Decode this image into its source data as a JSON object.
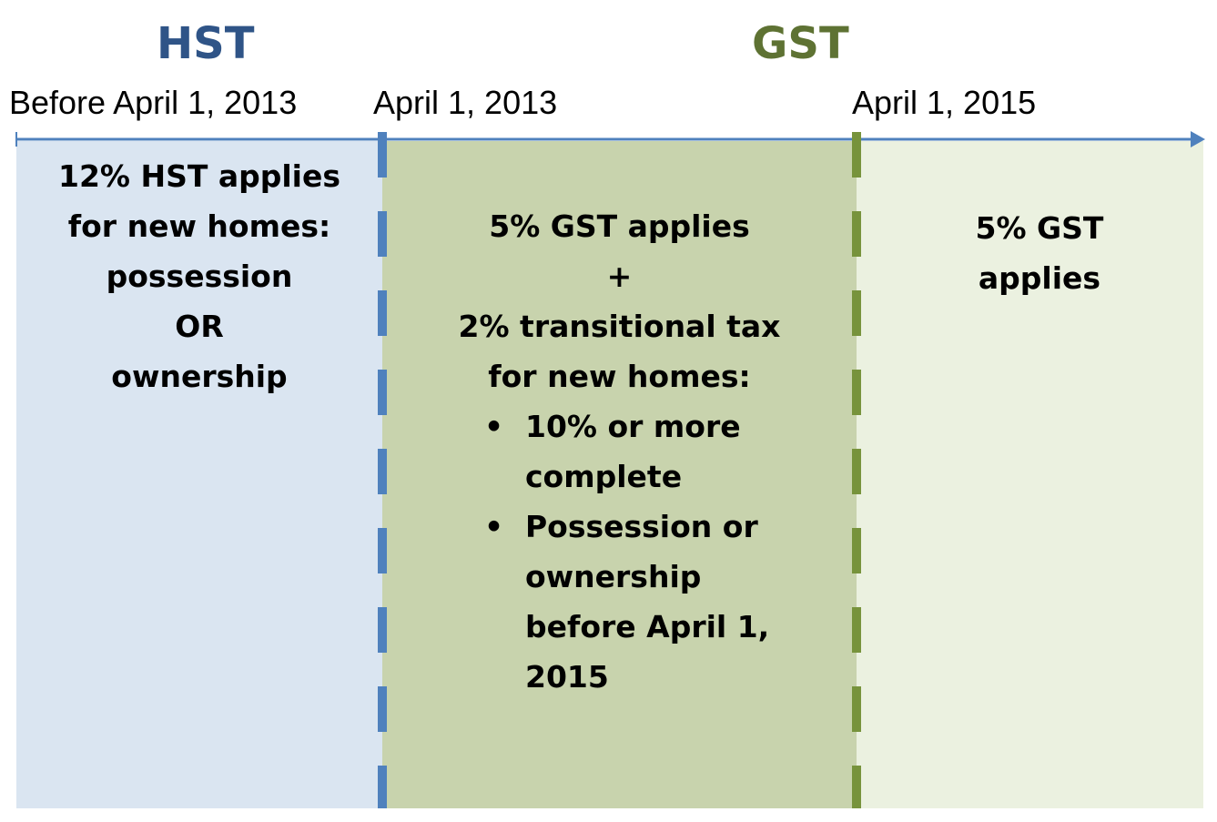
{
  "headings": {
    "hst": "HST",
    "gst": "GST"
  },
  "dates": {
    "before": "Before April 1, 2013",
    "start_transition": "April 1, 2013",
    "end_transition": "April 1, 2015"
  },
  "panels": {
    "hst": {
      "lines": [
        "12% HST applies",
        "for new homes:",
        "possession",
        "OR",
        "ownership"
      ]
    },
    "transition": {
      "lines": [
        "5% GST applies",
        "+",
        "2% transitional tax",
        "for new homes:"
      ],
      "bullets": [
        [
          "10% or more",
          "complete"
        ],
        [
          "Possession or",
          "ownership",
          "before April 1,",
          "2015"
        ]
      ],
      "bullet_symbol": "•"
    },
    "gst": {
      "lines": [
        "5% GST",
        "applies"
      ]
    }
  },
  "colors": {
    "hst_accent": "#2f5487",
    "gst_accent": "#5e7233",
    "hst_panel": "#dae5f1",
    "transition_panel": "#c8d3ad",
    "gst_panel": "#ebf1e0",
    "timeline": "#4f81bd",
    "hst_divider": "#4f81bd",
    "gst_divider": "#77933c"
  }
}
